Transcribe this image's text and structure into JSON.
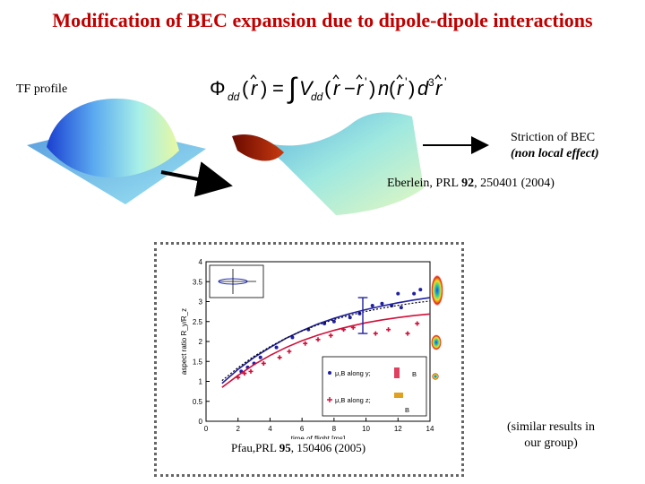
{
  "slide": {
    "title": "Modification of BEC expansion due to dipole-dipole interactions",
    "tf_profile_label": "TF profile",
    "striction_line1": "Striction of BEC",
    "striction_line2": "(non local effect)",
    "eberlein_prefix": "Eberlein, PRL ",
    "eberlein_volume": "92",
    "eberlein_suffix": ", 250401 (2004)",
    "pfau_prefix": "Pfau,PRL ",
    "pfau_volume": "95",
    "pfau_suffix": ", 150406 (2005)",
    "similar_line1": "(similar results in",
    "similar_line2": "our group)"
  },
  "formula": {
    "phi": "Φ",
    "phi_sub": "dd",
    "r": "r",
    "eq": "=",
    "integral": "∫",
    "v": "V",
    "v_sub": "dd",
    "n": "n",
    "d3r": "d",
    "cube": "3",
    "prime": "'"
  },
  "colors": {
    "title": "#c00000",
    "blue_series": "#2020a0",
    "red_series": "#d0103a",
    "arrow": "#000000"
  },
  "chart_data": {
    "type": "scatter",
    "xlabel": "time of flight [ms]",
    "ylabel": "aspect ratio R_y/R_z",
    "xlim": [
      0,
      14
    ],
    "ylim": [
      0,
      4
    ],
    "xticks": [
      "0",
      "2",
      "4",
      "6",
      "8",
      "10",
      "12",
      "14"
    ],
    "yticks": [
      "0",
      "0.5",
      "1",
      "1.5",
      "2",
      "2.5",
      "3",
      "3.5",
      "4"
    ],
    "legend_blue": "μ,B along y;",
    "legend_red": "μ,B along z;",
    "legend_label_b": "B",
    "series": [
      {
        "name": "μ,B along y;",
        "color": "#2020a0",
        "points": [
          [
            2.2,
            1.25
          ],
          [
            2.6,
            1.35
          ],
          [
            3.0,
            1.45
          ],
          [
            3.4,
            1.6
          ],
          [
            4.4,
            1.85
          ],
          [
            5.4,
            2.1
          ],
          [
            6.4,
            2.3
          ],
          [
            7.4,
            2.45
          ],
          [
            8.0,
            2.5
          ],
          [
            9.0,
            2.6
          ],
          [
            9.6,
            2.7
          ],
          [
            10.4,
            2.9
          ],
          [
            11.0,
            2.95
          ],
          [
            11.6,
            2.9
          ],
          [
            12.2,
            2.85
          ],
          [
            13.4,
            3.3
          ],
          [
            12.0,
            3.2
          ],
          [
            13.0,
            3.2
          ]
        ],
        "fit": [
          [
            1.0,
            0.95
          ],
          [
            2,
            1.3
          ],
          [
            3,
            1.6
          ],
          [
            4,
            1.85
          ],
          [
            5,
            2.08
          ],
          [
            6,
            2.27
          ],
          [
            7,
            2.44
          ],
          [
            8,
            2.58
          ],
          [
            9,
            2.7
          ],
          [
            10,
            2.8
          ],
          [
            11,
            2.89
          ],
          [
            12,
            2.97
          ],
          [
            13,
            3.04
          ],
          [
            14,
            3.1
          ]
        ]
      },
      {
        "name": "μ,B along z;",
        "color": "#d0103a",
        "points": [
          [
            2.0,
            1.1
          ],
          [
            2.4,
            1.2
          ],
          [
            2.8,
            1.25
          ],
          [
            3.6,
            1.45
          ],
          [
            4.6,
            1.6
          ],
          [
            5.2,
            1.75
          ],
          [
            6.2,
            1.95
          ],
          [
            7.0,
            2.05
          ],
          [
            7.8,
            2.15
          ],
          [
            8.6,
            2.3
          ],
          [
            9.2,
            2.35
          ],
          [
            10.6,
            2.2
          ],
          [
            11.4,
            2.3
          ],
          [
            12.6,
            2.2
          ],
          [
            13.2,
            2.45
          ]
        ],
        "fit": [
          [
            1.0,
            0.85
          ],
          [
            2,
            1.15
          ],
          [
            3,
            1.42
          ],
          [
            4,
            1.65
          ],
          [
            5,
            1.85
          ],
          [
            6,
            2.02
          ],
          [
            7,
            2.16
          ],
          [
            8,
            2.28
          ],
          [
            9,
            2.38
          ],
          [
            10,
            2.47
          ],
          [
            11,
            2.54
          ],
          [
            12,
            2.6
          ],
          [
            13,
            2.65
          ],
          [
            14,
            2.69
          ]
        ]
      }
    ]
  }
}
